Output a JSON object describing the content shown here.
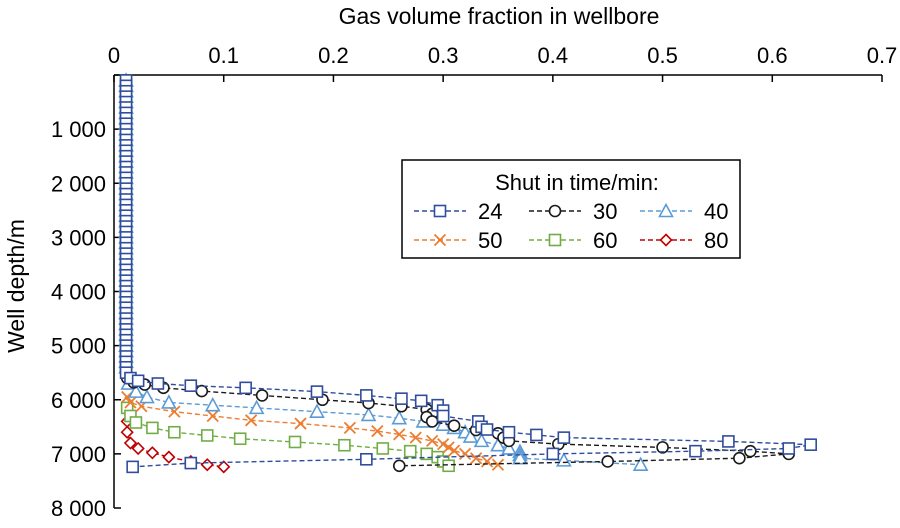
{
  "chart_data": {
    "type": "scatter",
    "xlabel": "Gas volume fraction in wellbore",
    "ylabel": "Well depth/m",
    "xlim": [
      0,
      0.7
    ],
    "ylim": [
      0,
      8000
    ],
    "x_axis_position": "top",
    "y_axis_inverted": true,
    "grid": false,
    "x_ticks": [
      "0",
      "0.1",
      "0.2",
      "0.3",
      "0.4",
      "0.5",
      "0.6",
      "0.7"
    ],
    "y_ticks": [
      "",
      "1 000",
      "2 000",
      "3 000",
      "4 000",
      "5 000",
      "6 000",
      "7 000",
      "8 000"
    ],
    "legend": {
      "title": "Shut in time/min:",
      "position": "upper-right",
      "columns": 3
    },
    "series": [
      {
        "name": "24",
        "color": "#2f4d9c",
        "marker": "square",
        "points": [
          [
            0.011,
            5500
          ],
          [
            0.015,
            5600
          ],
          [
            0.022,
            5650
          ],
          [
            0.04,
            5700
          ],
          [
            0.07,
            5740
          ],
          [
            0.12,
            5780
          ],
          [
            0.185,
            5850
          ],
          [
            0.23,
            5920
          ],
          [
            0.262,
            5980
          ],
          [
            0.28,
            6020
          ],
          [
            0.295,
            6100
          ],
          [
            0.3,
            6200
          ],
          [
            0.3,
            6300
          ],
          [
            0.332,
            6400
          ],
          [
            0.335,
            6500
          ],
          [
            0.34,
            6550
          ],
          [
            0.36,
            6600
          ],
          [
            0.385,
            6650
          ],
          [
            0.41,
            6700
          ],
          [
            0.56,
            6770
          ],
          [
            0.635,
            6830
          ],
          [
            0.615,
            6900
          ],
          [
            0.53,
            6950
          ],
          [
            0.4,
            7000
          ],
          [
            0.23,
            7100
          ],
          [
            0.07,
            7170
          ],
          [
            0.017,
            7240
          ]
        ]
      },
      {
        "name": "30",
        "color": "#1a1a1a",
        "marker": "circle",
        "points": [
          [
            0.012,
            5600
          ],
          [
            0.018,
            5680
          ],
          [
            0.028,
            5720
          ],
          [
            0.045,
            5780
          ],
          [
            0.08,
            5840
          ],
          [
            0.135,
            5920
          ],
          [
            0.19,
            6000
          ],
          [
            0.232,
            6060
          ],
          [
            0.262,
            6120
          ],
          [
            0.285,
            6180
          ],
          [
            0.29,
            6260
          ],
          [
            0.285,
            6320
          ],
          [
            0.29,
            6400
          ],
          [
            0.31,
            6480
          ],
          [
            0.33,
            6560
          ],
          [
            0.35,
            6620
          ],
          [
            0.355,
            6700
          ],
          [
            0.36,
            6760
          ],
          [
            0.405,
            6820
          ],
          [
            0.5,
            6880
          ],
          [
            0.58,
            6950
          ],
          [
            0.615,
            7000
          ],
          [
            0.57,
            7080
          ],
          [
            0.45,
            7140
          ],
          [
            0.26,
            7220
          ]
        ]
      },
      {
        "name": "40",
        "color": "#5b9bd5",
        "marker": "triangle",
        "points": [
          [
            0.013,
            5700
          ],
          [
            0.02,
            5850
          ],
          [
            0.03,
            5950
          ],
          [
            0.05,
            6050
          ],
          [
            0.09,
            6100
          ],
          [
            0.13,
            6150
          ],
          [
            0.185,
            6220
          ],
          [
            0.232,
            6280
          ],
          [
            0.26,
            6340
          ],
          [
            0.282,
            6400
          ],
          [
            0.3,
            6460
          ],
          [
            0.31,
            6520
          ],
          [
            0.32,
            6600
          ],
          [
            0.325,
            6680
          ],
          [
            0.335,
            6760
          ],
          [
            0.35,
            6840
          ],
          [
            0.36,
            6900
          ],
          [
            0.37,
            6960
          ],
          [
            0.37,
            7020
          ],
          [
            0.37,
            7080
          ],
          [
            0.41,
            7120
          ],
          [
            0.48,
            7200
          ]
        ]
      },
      {
        "name": "50",
        "color": "#ed7d31",
        "marker": "x",
        "points": [
          [
            0.012,
            5950
          ],
          [
            0.015,
            6050
          ],
          [
            0.025,
            6120
          ],
          [
            0.055,
            6220
          ],
          [
            0.09,
            6300
          ],
          [
            0.125,
            6380
          ],
          [
            0.17,
            6440
          ],
          [
            0.215,
            6520
          ],
          [
            0.24,
            6580
          ],
          [
            0.26,
            6640
          ],
          [
            0.275,
            6700
          ],
          [
            0.29,
            6760
          ],
          [
            0.3,
            6820
          ],
          [
            0.305,
            6880
          ],
          [
            0.31,
            6940
          ],
          [
            0.32,
            7000
          ],
          [
            0.33,
            7080
          ],
          [
            0.34,
            7140
          ],
          [
            0.35,
            7200
          ]
        ]
      },
      {
        "name": "60",
        "color": "#70ad47",
        "marker": "square",
        "points": [
          [
            0.012,
            6150
          ],
          [
            0.015,
            6300
          ],
          [
            0.02,
            6420
          ],
          [
            0.035,
            6520
          ],
          [
            0.055,
            6600
          ],
          [
            0.085,
            6660
          ],
          [
            0.115,
            6720
          ],
          [
            0.165,
            6780
          ],
          [
            0.21,
            6840
          ],
          [
            0.245,
            6900
          ],
          [
            0.27,
            6950
          ],
          [
            0.285,
            7000
          ],
          [
            0.295,
            7060
          ],
          [
            0.3,
            7140
          ],
          [
            0.305,
            7220
          ]
        ]
      },
      {
        "name": "80",
        "color": "#c00000",
        "marker": "diamond",
        "points": [
          [
            0.012,
            6400
          ],
          [
            0.012,
            6600
          ],
          [
            0.015,
            6800
          ],
          [
            0.022,
            6900
          ],
          [
            0.035,
            6980
          ],
          [
            0.05,
            7060
          ],
          [
            0.07,
            7140
          ],
          [
            0.085,
            7200
          ],
          [
            0.1,
            7240
          ]
        ]
      }
    ]
  }
}
